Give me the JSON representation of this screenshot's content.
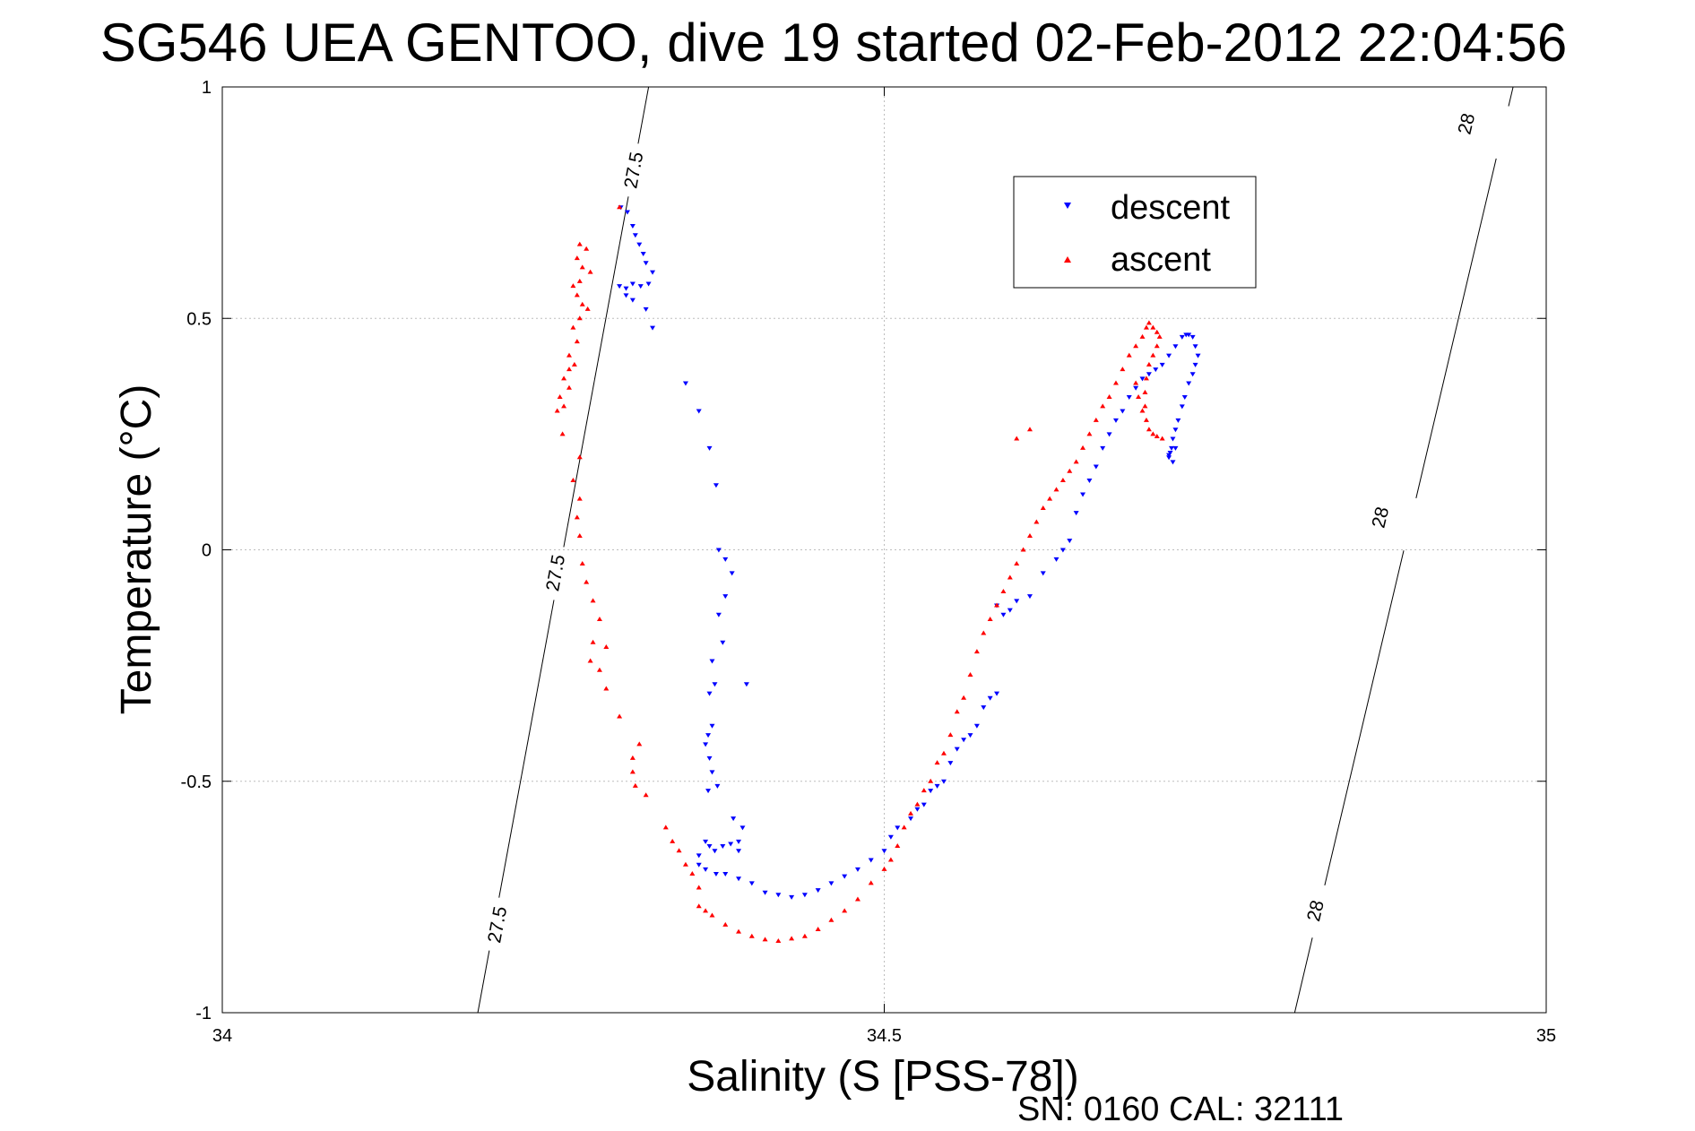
{
  "chart_data": {
    "type": "scatter",
    "title": "SG546 UEA GENTOO, dive 19 started 02-Feb-2012 22:04:56",
    "xlabel": "Salinity (S [PSS-78])",
    "ylabel": "Temperature (°C)",
    "xlim": [
      34,
      35
    ],
    "ylim": [
      -1,
      1
    ],
    "xticks": [
      34,
      34.5,
      35
    ],
    "xtick_labels": [
      "34",
      "34.5",
      "35"
    ],
    "yticks": [
      -1,
      -0.5,
      0,
      0.5,
      1
    ],
    "ytick_labels": [
      "-1",
      "-0.5",
      "0",
      "0.5",
      "1"
    ],
    "grid": true,
    "legend": {
      "placement": "top-right"
    },
    "isopycnals": [
      {
        "value": "27.5",
        "points": [
          [
            34.193,
            -1.0
          ],
          [
            34.322,
            1.0
          ]
        ],
        "labels": [
          {
            "x": 34.208,
            "y": -0.81
          },
          {
            "x": 34.252,
            "y": -0.05
          },
          {
            "x": 34.311,
            "y": 0.82
          }
        ]
      },
      {
        "value": "28",
        "points": [
          [
            34.81,
            -1.0
          ],
          [
            34.975,
            1.0
          ]
        ],
        "labels": [
          {
            "x": 34.826,
            "y": -0.78
          },
          {
            "x": 34.875,
            "y": 0.07
          },
          {
            "x": 34.94,
            "y": 0.92
          }
        ]
      }
    ],
    "series": [
      {
        "name": "descent",
        "color": "#0000ff",
        "marker": "triangle-down",
        "points": [
          [
            34.301,
            0.74
          ],
          [
            34.306,
            0.73
          ],
          [
            34.31,
            0.7
          ],
          [
            34.312,
            0.68
          ],
          [
            34.315,
            0.66
          ],
          [
            34.318,
            0.64
          ],
          [
            34.32,
            0.62
          ],
          [
            34.325,
            0.6
          ],
          [
            34.3,
            0.57
          ],
          [
            34.305,
            0.565
          ],
          [
            34.31,
            0.575
          ],
          [
            34.316,
            0.57
          ],
          [
            34.322,
            0.575
          ],
          [
            34.305,
            0.55
          ],
          [
            34.31,
            0.54
          ],
          [
            34.32,
            0.52
          ],
          [
            34.325,
            0.48
          ],
          [
            34.35,
            0.36
          ],
          [
            34.36,
            0.3
          ],
          [
            34.368,
            0.22
          ],
          [
            34.373,
            0.14
          ],
          [
            34.375,
            0.0
          ],
          [
            34.38,
            -0.02
          ],
          [
            34.385,
            -0.05
          ],
          [
            34.38,
            -0.1
          ],
          [
            34.375,
            -0.14
          ],
          [
            34.378,
            -0.2
          ],
          [
            34.37,
            -0.24
          ],
          [
            34.372,
            -0.29
          ],
          [
            34.368,
            -0.31
          ],
          [
            34.37,
            -0.38
          ],
          [
            34.367,
            -0.4
          ],
          [
            34.365,
            -0.42
          ],
          [
            34.368,
            -0.45
          ],
          [
            34.37,
            -0.48
          ],
          [
            34.374,
            -0.51
          ],
          [
            34.367,
            -0.52
          ],
          [
            34.396,
            -0.29
          ],
          [
            34.39,
            -0.65
          ],
          [
            34.393,
            -0.6
          ],
          [
            34.386,
            -0.58
          ],
          [
            34.365,
            -0.63
          ],
          [
            34.368,
            -0.64
          ],
          [
            34.372,
            -0.65
          ],
          [
            34.378,
            -0.64
          ],
          [
            34.384,
            -0.635
          ],
          [
            34.39,
            -0.63
          ],
          [
            34.36,
            -0.66
          ],
          [
            34.36,
            -0.68
          ],
          [
            34.365,
            -0.69
          ],
          [
            34.373,
            -0.7
          ],
          [
            34.38,
            -0.7
          ],
          [
            34.39,
            -0.71
          ],
          [
            34.4,
            -0.72
          ],
          [
            34.41,
            -0.74
          ],
          [
            34.42,
            -0.745
          ],
          [
            34.43,
            -0.75
          ],
          [
            34.44,
            -0.745
          ],
          [
            34.45,
            -0.735
          ],
          [
            34.46,
            -0.72
          ],
          [
            34.47,
            -0.705
          ],
          [
            34.48,
            -0.69
          ],
          [
            34.49,
            -0.67
          ],
          [
            34.5,
            -0.65
          ],
          [
            34.505,
            -0.62
          ],
          [
            34.51,
            -0.6
          ],
          [
            34.52,
            -0.58
          ],
          [
            34.525,
            -0.56
          ],
          [
            34.53,
            -0.55
          ],
          [
            34.535,
            -0.52
          ],
          [
            34.54,
            -0.51
          ],
          [
            34.545,
            -0.5
          ],
          [
            34.55,
            -0.46
          ],
          [
            34.555,
            -0.43
          ],
          [
            34.56,
            -0.41
          ],
          [
            34.565,
            -0.4
          ],
          [
            34.57,
            -0.38
          ],
          [
            34.575,
            -0.34
          ],
          [
            34.58,
            -0.32
          ],
          [
            34.585,
            -0.31
          ],
          [
            34.585,
            -0.12
          ],
          [
            34.59,
            -0.14
          ],
          [
            34.595,
            -0.13
          ],
          [
            34.6,
            -0.11
          ],
          [
            34.61,
            -0.1
          ],
          [
            34.62,
            -0.05
          ],
          [
            34.63,
            -0.02
          ],
          [
            34.635,
            0.0
          ],
          [
            34.64,
            0.02
          ],
          [
            34.645,
            0.08
          ],
          [
            34.65,
            0.12
          ],
          [
            34.655,
            0.15
          ],
          [
            34.66,
            0.18
          ],
          [
            34.665,
            0.22
          ],
          [
            34.67,
            0.25
          ],
          [
            34.675,
            0.28
          ],
          [
            34.68,
            0.3
          ],
          [
            34.685,
            0.33
          ],
          [
            34.69,
            0.35
          ],
          [
            34.695,
            0.37
          ],
          [
            34.7,
            0.38
          ],
          [
            34.705,
            0.39
          ],
          [
            34.71,
            0.4
          ],
          [
            34.715,
            0.42
          ],
          [
            34.72,
            0.44
          ],
          [
            34.725,
            0.46
          ],
          [
            34.728,
            0.465
          ],
          [
            34.73,
            0.465
          ],
          [
            34.733,
            0.46
          ],
          [
            34.735,
            0.44
          ],
          [
            34.737,
            0.42
          ],
          [
            34.735,
            0.4
          ],
          [
            34.733,
            0.38
          ],
          [
            34.73,
            0.36
          ],
          [
            34.727,
            0.33
          ],
          [
            34.725,
            0.31
          ],
          [
            34.722,
            0.28
          ],
          [
            34.72,
            0.26
          ],
          [
            34.718,
            0.24
          ],
          [
            34.717,
            0.22
          ],
          [
            34.716,
            0.21
          ],
          [
            34.715,
            0.205
          ],
          [
            34.72,
            0.22
          ],
          [
            34.718,
            0.19
          ],
          [
            34.715,
            0.2
          ]
        ]
      },
      {
        "name": "ascent",
        "color": "#ff0000",
        "marker": "triangle-up",
        "points": [
          [
            34.3,
            0.74
          ],
          [
            34.27,
            0.66
          ],
          [
            34.275,
            0.65
          ],
          [
            34.268,
            0.63
          ],
          [
            34.272,
            0.61
          ],
          [
            34.278,
            0.6
          ],
          [
            34.27,
            0.58
          ],
          [
            34.265,
            0.57
          ],
          [
            34.268,
            0.55
          ],
          [
            34.272,
            0.53
          ],
          [
            34.276,
            0.52
          ],
          [
            34.27,
            0.5
          ],
          [
            34.265,
            0.48
          ],
          [
            34.268,
            0.45
          ],
          [
            34.262,
            0.42
          ],
          [
            34.266,
            0.4
          ],
          [
            34.262,
            0.39
          ],
          [
            34.258,
            0.37
          ],
          [
            34.262,
            0.35
          ],
          [
            34.255,
            0.33
          ],
          [
            34.258,
            0.31
          ],
          [
            34.253,
            0.3
          ],
          [
            34.257,
            0.25
          ],
          [
            34.27,
            0.2
          ],
          [
            34.265,
            0.15
          ],
          [
            34.27,
            0.11
          ],
          [
            34.268,
            0.07
          ],
          [
            34.27,
            0.03
          ],
          [
            34.272,
            -0.03
          ],
          [
            34.275,
            -0.07
          ],
          [
            34.28,
            -0.11
          ],
          [
            34.285,
            -0.15
          ],
          [
            34.28,
            -0.2
          ],
          [
            34.278,
            -0.24
          ],
          [
            34.29,
            -0.21
          ],
          [
            34.285,
            -0.26
          ],
          [
            34.29,
            -0.3
          ],
          [
            34.3,
            -0.36
          ],
          [
            34.315,
            -0.42
          ],
          [
            34.31,
            -0.45
          ],
          [
            34.31,
            -0.48
          ],
          [
            34.312,
            -0.51
          ],
          [
            34.32,
            -0.53
          ],
          [
            34.335,
            -0.6
          ],
          [
            34.34,
            -0.63
          ],
          [
            34.345,
            -0.65
          ],
          [
            34.35,
            -0.68
          ],
          [
            34.355,
            -0.7
          ],
          [
            34.36,
            -0.73
          ],
          [
            34.36,
            -0.77
          ],
          [
            34.365,
            -0.78
          ],
          [
            34.37,
            -0.79
          ],
          [
            34.38,
            -0.81
          ],
          [
            34.39,
            -0.825
          ],
          [
            34.4,
            -0.835
          ],
          [
            34.41,
            -0.842
          ],
          [
            34.42,
            -0.845
          ],
          [
            34.43,
            -0.84
          ],
          [
            34.44,
            -0.835
          ],
          [
            34.45,
            -0.82
          ],
          [
            34.46,
            -0.8
          ],
          [
            34.47,
            -0.78
          ],
          [
            34.48,
            -0.755
          ],
          [
            34.49,
            -0.72
          ],
          [
            34.5,
            -0.69
          ],
          [
            34.505,
            -0.67
          ],
          [
            34.51,
            -0.64
          ],
          [
            34.515,
            -0.6
          ],
          [
            34.52,
            -0.57
          ],
          [
            34.525,
            -0.55
          ],
          [
            34.53,
            -0.52
          ],
          [
            34.535,
            -0.5
          ],
          [
            34.54,
            -0.46
          ],
          [
            34.545,
            -0.44
          ],
          [
            34.55,
            -0.4
          ],
          [
            34.555,
            -0.35
          ],
          [
            34.56,
            -0.32
          ],
          [
            34.565,
            -0.27
          ],
          [
            34.57,
            -0.22
          ],
          [
            34.575,
            -0.18
          ],
          [
            34.58,
            -0.15
          ],
          [
            34.585,
            -0.12
          ],
          [
            34.59,
            -0.09
          ],
          [
            34.595,
            -0.06
          ],
          [
            34.6,
            -0.03
          ],
          [
            34.605,
            0.0
          ],
          [
            34.61,
            0.03
          ],
          [
            34.615,
            0.06
          ],
          [
            34.62,
            0.09
          ],
          [
            34.625,
            0.11
          ],
          [
            34.63,
            0.13
          ],
          [
            34.635,
            0.15
          ],
          [
            34.64,
            0.17
          ],
          [
            34.645,
            0.19
          ],
          [
            34.65,
            0.22
          ],
          [
            34.655,
            0.25
          ],
          [
            34.66,
            0.28
          ],
          [
            34.665,
            0.31
          ],
          [
            34.67,
            0.33
          ],
          [
            34.675,
            0.36
          ],
          [
            34.68,
            0.39
          ],
          [
            34.685,
            0.42
          ],
          [
            34.69,
            0.44
          ],
          [
            34.695,
            0.46
          ],
          [
            34.698,
            0.48
          ],
          [
            34.7,
            0.49
          ],
          [
            34.703,
            0.48
          ],
          [
            34.706,
            0.47
          ],
          [
            34.708,
            0.46
          ],
          [
            34.706,
            0.44
          ],
          [
            34.703,
            0.42
          ],
          [
            34.7,
            0.4
          ],
          [
            34.698,
            0.37
          ],
          [
            34.697,
            0.34
          ],
          [
            34.697,
            0.31
          ],
          [
            34.698,
            0.28
          ],
          [
            34.7,
            0.26
          ],
          [
            34.703,
            0.25
          ],
          [
            34.706,
            0.245
          ],
          [
            34.71,
            0.24
          ],
          [
            34.695,
            0.3
          ],
          [
            34.692,
            0.33
          ],
          [
            34.69,
            0.36
          ],
          [
            34.6,
            0.24
          ],
          [
            34.61,
            0.26
          ]
        ]
      }
    ],
    "footer": "SN: 0160  CAL: 32111"
  }
}
